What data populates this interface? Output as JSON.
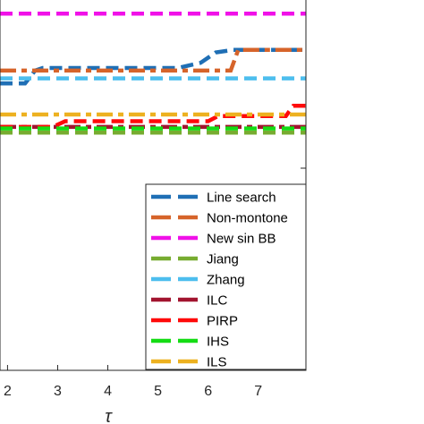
{
  "chart_data": {
    "type": "line",
    "title": "",
    "xlabel": "τ",
    "ylabel": "",
    "xlim": [
      1.85,
      7.95
    ],
    "ylim": [
      0.3,
      1.02
    ],
    "x_ticks": [
      2,
      3,
      4,
      5,
      6,
      7
    ],
    "x_tick_labels": [
      "2",
      "3",
      "4",
      "5",
      "6",
      "7"
    ],
    "grid": false,
    "legend_position": "bottom-right",
    "series": [
      {
        "name": "Line search",
        "color": "#1f6fb5",
        "points": [
          [
            1.85,
            0.855
          ],
          [
            2.35,
            0.855
          ],
          [
            2.55,
            0.88
          ],
          [
            2.7,
            0.885
          ],
          [
            5.4,
            0.885
          ],
          [
            5.85,
            0.895
          ],
          [
            6.15,
            0.915
          ],
          [
            6.5,
            0.92
          ],
          [
            7.95,
            0.92
          ]
        ]
      },
      {
        "name": "Non-montone",
        "color": "#d6642a",
        "points": [
          [
            1.85,
            0.88
          ],
          [
            6.45,
            0.88
          ],
          [
            6.6,
            0.92
          ],
          [
            7.95,
            0.92
          ]
        ]
      },
      {
        "name": "New sin BB",
        "color": "#f011e8",
        "points": [
          [
            1.85,
            0.99
          ],
          [
            7.95,
            0.99
          ]
        ]
      },
      {
        "name": "Jiang",
        "color": "#77ac30",
        "points": [
          [
            1.85,
            0.76
          ],
          [
            7.95,
            0.76
          ]
        ]
      },
      {
        "name": "Zhang",
        "color": "#4dbeee",
        "points": [
          [
            1.85,
            0.865
          ],
          [
            7.95,
            0.865
          ]
        ]
      },
      {
        "name": "ILC",
        "color": "#a2142f",
        "points": [
          [
            1.85,
            0.771
          ],
          [
            7.95,
            0.771
          ]
        ]
      },
      {
        "name": "PIRP",
        "color": "#ff0a0a",
        "points": [
          [
            1.85,
            0.771
          ],
          [
            2.9,
            0.771
          ],
          [
            3.15,
            0.782
          ],
          [
            6.0,
            0.782
          ],
          [
            6.2,
            0.792
          ],
          [
            7.55,
            0.792
          ],
          [
            7.7,
            0.812
          ],
          [
            7.95,
            0.812
          ]
        ]
      },
      {
        "name": "IHS",
        "color": "#14dc14",
        "points": [
          [
            1.85,
            0.768
          ],
          [
            7.95,
            0.768
          ]
        ]
      },
      {
        "name": "ILS",
        "color": "#edb120",
        "points": [
          [
            1.85,
            0.795
          ],
          [
            7.95,
            0.795
          ]
        ]
      }
    ]
  }
}
